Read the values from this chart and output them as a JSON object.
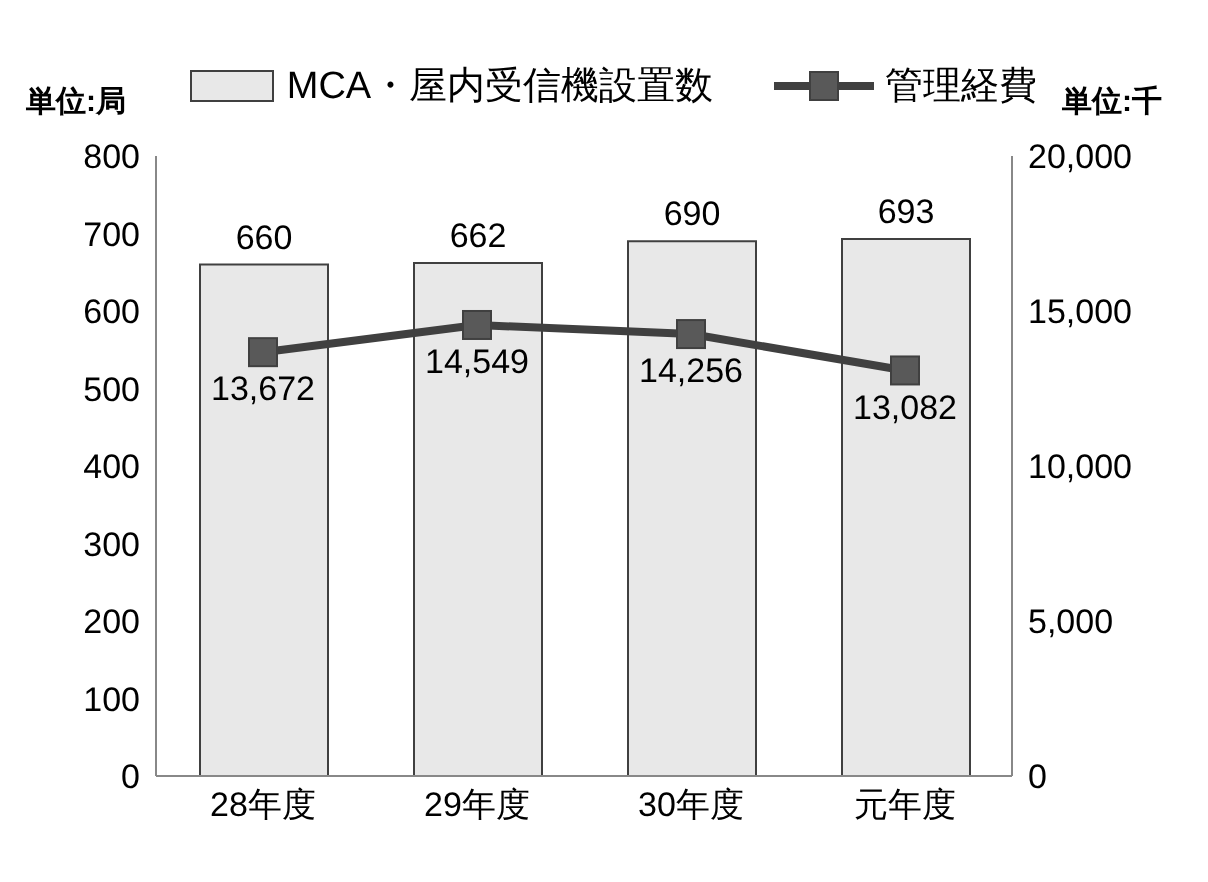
{
  "chart_data": {
    "type": "bar",
    "categories": [
      "28年度",
      "29年度",
      "30年度",
      "元年度"
    ],
    "series": [
      {
        "name": "MCA・屋内受信機設置数",
        "color": "#e8e8e8",
        "values": [
          660,
          662,
          690,
          693
        ],
        "value_labels": [
          "660",
          "662",
          "690",
          "693"
        ]
      },
      {
        "name": "管理経費",
        "type": "line",
        "axis": "y2",
        "color": "#404040",
        "values": [
          13672,
          14549,
          14256,
          13082
        ],
        "value_labels": [
          "13,672",
          "14,549",
          "14,256",
          "13,082"
        ]
      }
    ],
    "ylabel": "単位:局",
    "y2label": "単位:千",
    "ylim": [
      0,
      800
    ],
    "yticks": [
      0,
      100,
      200,
      300,
      400,
      500,
      600,
      700,
      800
    ],
    "y2lim": [
      0,
      20000
    ],
    "y2ticks": [
      0,
      {
        "value": 5000,
        "label": "5,000"
      },
      {
        "value": 10000,
        "label": "10,000"
      },
      {
        "value": 15000,
        "label": "15,000"
      },
      {
        "value": 20000,
        "label": "20,000"
      }
    ],
    "legend": "top",
    "marker": "square",
    "line_style": "solid"
  }
}
